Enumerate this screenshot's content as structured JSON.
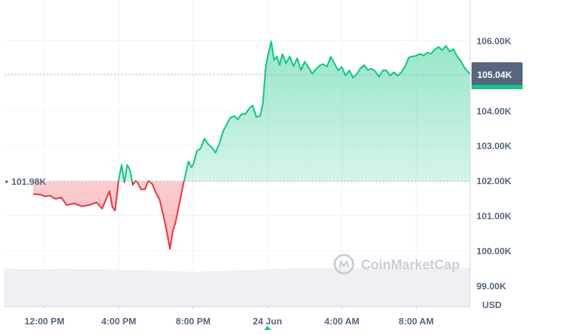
{
  "chart_data": {
    "type": "area",
    "unit_label": "USD",
    "open_price_label": "101.98K",
    "open_price": 101.98,
    "current_price_label": "105.04K",
    "current_price": 105.04,
    "y_unit": "K USD",
    "ylim": [
      98.4,
      107
    ],
    "y_ticks": [
      {
        "value": 106,
        "label": "106.00K"
      },
      {
        "value": 105,
        "label": "105.00K"
      },
      {
        "value": 104,
        "label": "104.00K"
      },
      {
        "value": 103,
        "label": "103.00K"
      },
      {
        "value": 102,
        "label": "102.00K"
      },
      {
        "value": 101,
        "label": "101.00K"
      },
      {
        "value": 100,
        "label": "100.00K"
      },
      {
        "value": 99,
        "label": "99.00K"
      }
    ],
    "x_ticks": [
      {
        "hour": 12,
        "label": "12:00 PM"
      },
      {
        "hour": 16,
        "label": "4:00 PM"
      },
      {
        "hour": 20,
        "label": "8:00 PM"
      },
      {
        "hour": 24,
        "label": "24 Jun"
      },
      {
        "hour": 28,
        "label": "4:00 AM"
      },
      {
        "hour": 32,
        "label": "8:00 AM"
      }
    ],
    "colors": {
      "up": "#16c784",
      "down": "#ea3943",
      "grid": "#eff2f5",
      "price_tag": "#58667e"
    },
    "series": [
      {
        "x": [
          11.4,
          11.8,
          12.0,
          12.3,
          12.6,
          12.9,
          13.2,
          13.6,
          14.0,
          14.4,
          14.8,
          15.1,
          15.3,
          15.5,
          15.65,
          15.8,
          16.0,
          16.15,
          16.3,
          16.45,
          16.6,
          16.75,
          16.9,
          17.0,
          17.2,
          17.4,
          17.6,
          17.8,
          18.0,
          18.2,
          18.4,
          18.6,
          18.75,
          18.9,
          19.05,
          19.2,
          19.3,
          19.45,
          19.6,
          19.75,
          19.9,
          20.0,
          20.2,
          20.4,
          20.6,
          20.8,
          21.0,
          21.2,
          21.4,
          21.6,
          21.8,
          22.0,
          22.2,
          22.4,
          22.6,
          22.8,
          23.0,
          23.2,
          23.4,
          23.6,
          23.75,
          23.9,
          24.05,
          24.2,
          24.35,
          24.5,
          24.65,
          24.8,
          25.0,
          25.2,
          25.4,
          25.6,
          25.8,
          26.0,
          26.2,
          26.4,
          26.6,
          26.8,
          27.0,
          27.2,
          27.4,
          27.6,
          27.8,
          28.0,
          28.2,
          28.4,
          28.6,
          28.8,
          29.0,
          29.2,
          29.4,
          29.6,
          29.8,
          30.0,
          30.2,
          30.4,
          30.6,
          30.8,
          31.0,
          31.2,
          31.4,
          31.6,
          31.8,
          32.0,
          32.2,
          32.4,
          32.6,
          32.8,
          33.0,
          33.2,
          33.4,
          33.6,
          33.8,
          34.0,
          34.2,
          34.4,
          34.6,
          34.9
        ],
        "y": [
          101.62,
          101.6,
          101.55,
          101.57,
          101.48,
          101.52,
          101.3,
          101.35,
          101.27,
          101.3,
          101.38,
          101.2,
          101.45,
          101.7,
          101.25,
          101.15,
          102.05,
          102.45,
          101.95,
          102.45,
          102.3,
          101.88,
          102.0,
          101.95,
          101.75,
          101.75,
          102.0,
          101.9,
          101.65,
          101.45,
          101.0,
          100.5,
          100.05,
          100.55,
          100.8,
          101.2,
          101.45,
          101.85,
          102.2,
          102.55,
          102.38,
          102.45,
          102.85,
          102.92,
          103.2,
          103.05,
          102.95,
          102.8,
          103.05,
          103.4,
          103.6,
          103.8,
          103.85,
          103.75,
          103.9,
          103.9,
          104.05,
          104.15,
          103.82,
          103.85,
          104.2,
          105.25,
          105.65,
          105.98,
          105.45,
          105.55,
          105.3,
          105.62,
          105.35,
          105.55,
          105.27,
          105.5,
          105.16,
          105.4,
          105.25,
          105.06,
          105.18,
          105.29,
          105.33,
          105.26,
          105.54,
          105.35,
          105.15,
          105.25,
          105.0,
          105.15,
          104.94,
          105.05,
          105.21,
          105.3,
          105.16,
          105.2,
          105.12,
          104.97,
          105.15,
          105.15,
          105.0,
          105.1,
          105.0,
          105.1,
          105.27,
          105.52,
          105.55,
          105.57,
          105.62,
          105.58,
          105.66,
          105.63,
          105.75,
          105.82,
          105.73,
          105.85,
          105.69,
          105.76,
          105.55,
          105.42,
          105.23,
          105.04
        ]
      }
    ],
    "volume": {
      "x": [
        11.4,
        12.0,
        13.0,
        14.0,
        15.0,
        16.0,
        17.0,
        18.0,
        19.0,
        20.0,
        21.0,
        22.0,
        23.0,
        24.0,
        25.0,
        26.0,
        27.0,
        28.0,
        29.0,
        30.0,
        31.0,
        32.0,
        33.0,
        34.0,
        34.9
      ],
      "values": [
        0.93,
        0.92,
        0.93,
        0.92,
        0.92,
        0.91,
        0.9,
        0.88,
        0.87,
        0.86,
        0.87,
        0.88,
        0.9,
        0.92,
        0.94,
        0.94,
        0.94,
        0.95,
        0.95,
        0.95,
        0.95,
        0.95,
        0.96,
        0.96,
        0.96
      ]
    },
    "xlim": [
      10.5,
      34.9
    ]
  },
  "watermark": {
    "text": "CoinMarketCap",
    "icon": "coinmarketcap-logo"
  }
}
